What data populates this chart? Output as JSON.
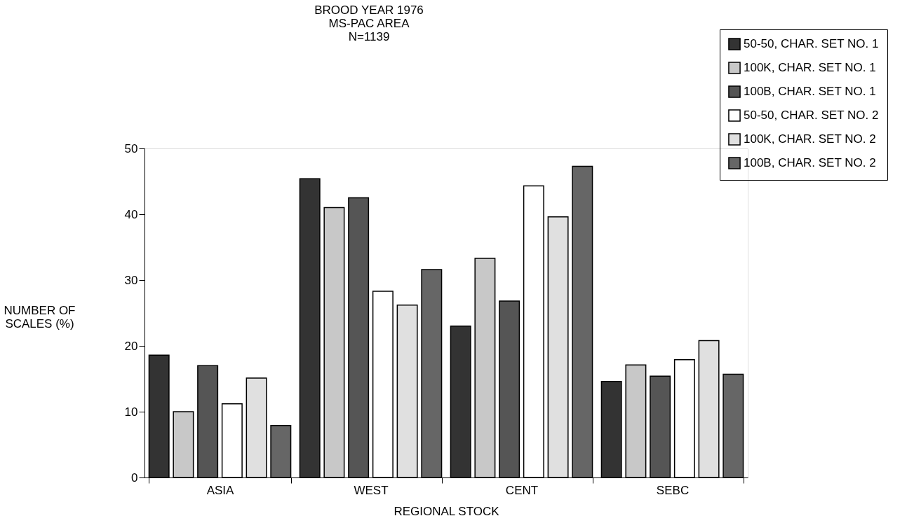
{
  "chart_data": {
    "type": "bar",
    "title": [
      "BROOD YEAR 1976",
      "MS-PAC AREA",
      "N=1139"
    ],
    "xlabel": "REGIONAL STOCK",
    "ylabel": [
      "NUMBER OF",
      "SCALES (%)"
    ],
    "categories": [
      "ASIA",
      "WEST",
      "CENT",
      "SEBC"
    ],
    "series": [
      {
        "name": "50-50, CHAR. SET NO. 1",
        "color": "#333333",
        "values": [
          18.6,
          45.4,
          23.0,
          14.6
        ]
      },
      {
        "name": "100K, CHAR. SET NO. 1",
        "color": "#c8c8c8",
        "values": [
          10.0,
          41.0,
          33.3,
          17.1
        ]
      },
      {
        "name": "100B, CHAR. SET NO. 1",
        "color": "#555555",
        "values": [
          17.0,
          42.5,
          26.8,
          15.4
        ]
      },
      {
        "name": "50-50, CHAR. SET NO. 2",
        "color": "#ffffff",
        "values": [
          11.2,
          28.3,
          44.3,
          17.9
        ]
      },
      {
        "name": "100K, CHAR. SET NO. 2",
        "color": "#e0e0e0",
        "values": [
          15.1,
          26.2,
          39.6,
          20.8
        ]
      },
      {
        "name": "100B, CHAR. SET NO. 2",
        "color": "#666666",
        "values": [
          7.9,
          31.6,
          47.3,
          15.7
        ]
      }
    ],
    "ylim": [
      0,
      50
    ],
    "yticks": [
      0,
      10,
      20,
      30,
      40,
      50
    ],
    "grid": false,
    "legend": "top right"
  }
}
